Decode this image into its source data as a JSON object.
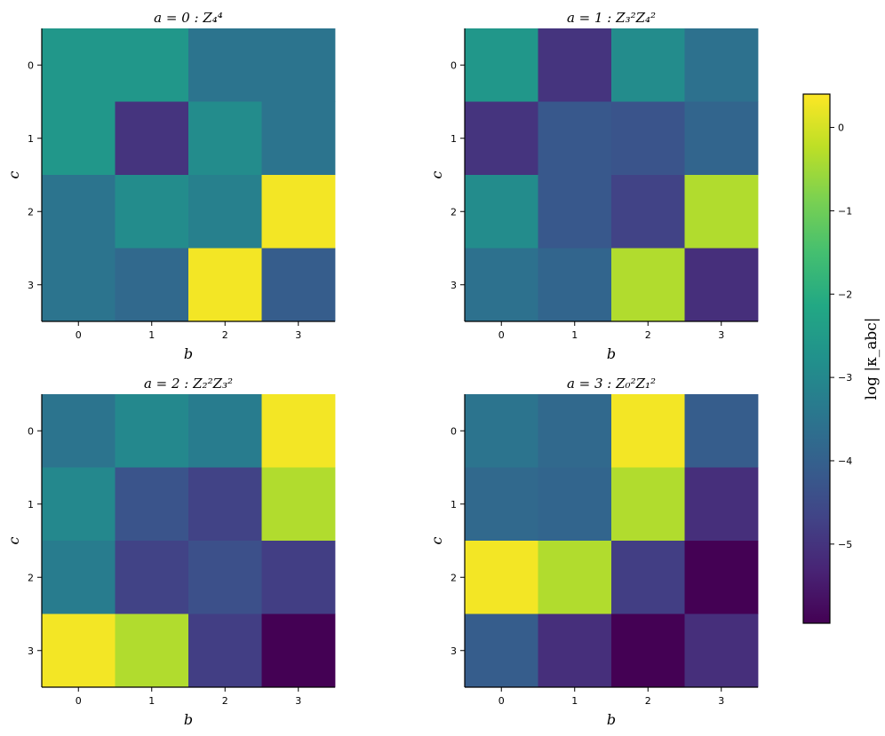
{
  "chart_data": {
    "type": "heatmap",
    "colormap": "viridis",
    "value_range": [
      -5.95,
      0.4
    ],
    "colorbar": {
      "label": "log |κ_abc|",
      "ticks": [
        0,
        -1,
        -2,
        -3,
        -4,
        -5
      ],
      "tick_labels": [
        "0",
        "−1",
        "−2",
        "−3",
        "−4",
        "−5"
      ]
    },
    "panels": [
      {
        "title": "a = 0 : Z₄⁴",
        "xlabel": "b",
        "ylabel": "c",
        "x_ticks": [
          "0",
          "1",
          "2",
          "3"
        ],
        "y_ticks": [
          "0",
          "1",
          "2",
          "3"
        ],
        "values": [
          [
            -2.6,
            -2.6,
            -3.5,
            -3.5
          ],
          [
            -2.6,
            -5.0,
            -2.9,
            -3.5
          ],
          [
            -3.5,
            -2.9,
            -3.2,
            0.3
          ],
          [
            -3.5,
            -3.8,
            0.3,
            -4.1
          ]
        ]
      },
      {
        "title": "a = 1 : Z₃²Z₄²",
        "xlabel": "b",
        "ylabel": "c",
        "x_ticks": [
          "0",
          "1",
          "2",
          "3"
        ],
        "y_ticks": [
          "0",
          "1",
          "2",
          "3"
        ],
        "values": [
          [
            -2.6,
            -5.0,
            -2.9,
            -3.6
          ],
          [
            -5.0,
            -4.2,
            -4.3,
            -3.9
          ],
          [
            -2.9,
            -4.2,
            -4.7,
            -0.35
          ],
          [
            -3.6,
            -3.9,
            -0.35,
            -5.1
          ]
        ]
      },
      {
        "title": "a = 2 : Z₂²Z₃²",
        "xlabel": "b",
        "ylabel": "c",
        "x_ticks": [
          "0",
          "1",
          "2",
          "3"
        ],
        "y_ticks": [
          "0",
          "1",
          "2",
          "3"
        ],
        "values": [
          [
            -3.5,
            -3.0,
            -3.3,
            0.3
          ],
          [
            -3.0,
            -4.3,
            -4.7,
            -0.35
          ],
          [
            -3.3,
            -4.7,
            -4.4,
            -4.8
          ],
          [
            0.3,
            -0.35,
            -4.8,
            -5.95
          ]
        ]
      },
      {
        "title": "a = 3 : Z₀²Z₁²",
        "xlabel": "b",
        "ylabel": "c",
        "x_ticks": [
          "0",
          "1",
          "2",
          "3"
        ],
        "y_ticks": [
          "0",
          "1",
          "2",
          "3"
        ],
        "values": [
          [
            -3.5,
            -3.8,
            0.3,
            -4.1
          ],
          [
            -3.8,
            -3.9,
            -0.35,
            -5.1
          ],
          [
            0.3,
            -0.35,
            -4.8,
            -5.95
          ],
          [
            -4.1,
            -5.1,
            -5.95,
            -5.1
          ]
        ]
      }
    ]
  }
}
